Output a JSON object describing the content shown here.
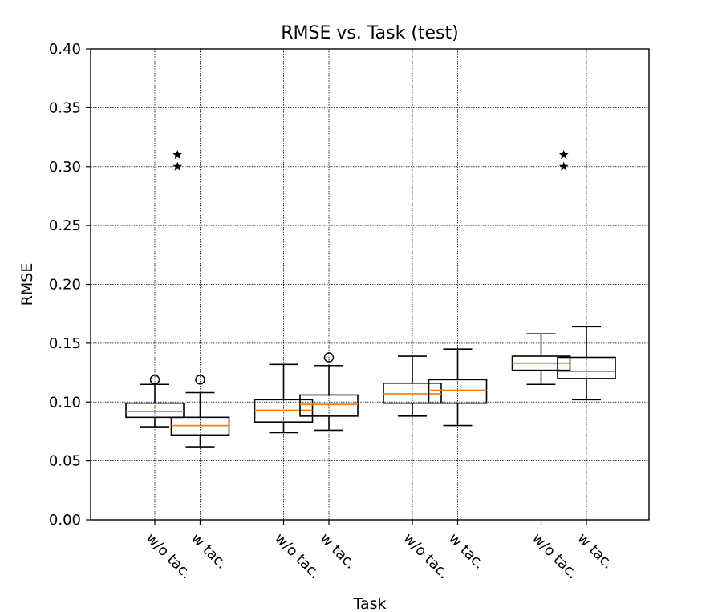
{
  "chart_data": {
    "type": "boxplot",
    "title": "RMSE vs. Task (test)",
    "xlabel": "Task",
    "ylabel": "RMSE",
    "ylim": [
      0,
      0.4
    ],
    "yticks": [
      "0.00",
      "0.05",
      "0.10",
      "0.15",
      "0.20",
      "0.25",
      "0.30",
      "0.35",
      "0.40"
    ],
    "grid": true,
    "tasks": [
      {
        "boxes": [
          {
            "label": "w/o tac.",
            "whisker_low": 0.079,
            "q1": 0.087,
            "median": 0.092,
            "q3": 0.099,
            "whisker_high": 0.115,
            "fliers": [
              0.119
            ]
          },
          {
            "label": "w tac.",
            "whisker_low": 0.062,
            "q1": 0.072,
            "median": 0.08,
            "q3": 0.087,
            "whisker_high": 0.108,
            "fliers": [
              0.119
            ]
          }
        ],
        "stars": [
          0.31,
          0.3
        ]
      },
      {
        "boxes": [
          {
            "label": "w/o tac.",
            "whisker_low": 0.074,
            "q1": 0.083,
            "median": 0.093,
            "q3": 0.102,
            "whisker_high": 0.132,
            "fliers": []
          },
          {
            "label": "w tac.",
            "whisker_low": 0.076,
            "q1": 0.088,
            "median": 0.098,
            "q3": 0.106,
            "whisker_high": 0.131,
            "fliers": [
              0.138
            ]
          }
        ],
        "stars": []
      },
      {
        "boxes": [
          {
            "label": "w/o tac.",
            "whisker_low": 0.088,
            "q1": 0.099,
            "median": 0.107,
            "q3": 0.116,
            "whisker_high": 0.139,
            "fliers": []
          },
          {
            "label": "w tac.",
            "whisker_low": 0.08,
            "q1": 0.099,
            "median": 0.11,
            "q3": 0.119,
            "whisker_high": 0.145,
            "fliers": []
          }
        ],
        "stars": []
      },
      {
        "boxes": [
          {
            "label": "w/o tac.",
            "whisker_low": 0.115,
            "q1": 0.127,
            "median": 0.133,
            "q3": 0.139,
            "whisker_high": 0.158,
            "fliers": []
          },
          {
            "label": "w tac.",
            "whisker_low": 0.102,
            "q1": 0.12,
            "median": 0.126,
            "q3": 0.138,
            "whisker_high": 0.164,
            "fliers": []
          }
        ],
        "stars": [
          0.31,
          0.3
        ]
      }
    ]
  }
}
